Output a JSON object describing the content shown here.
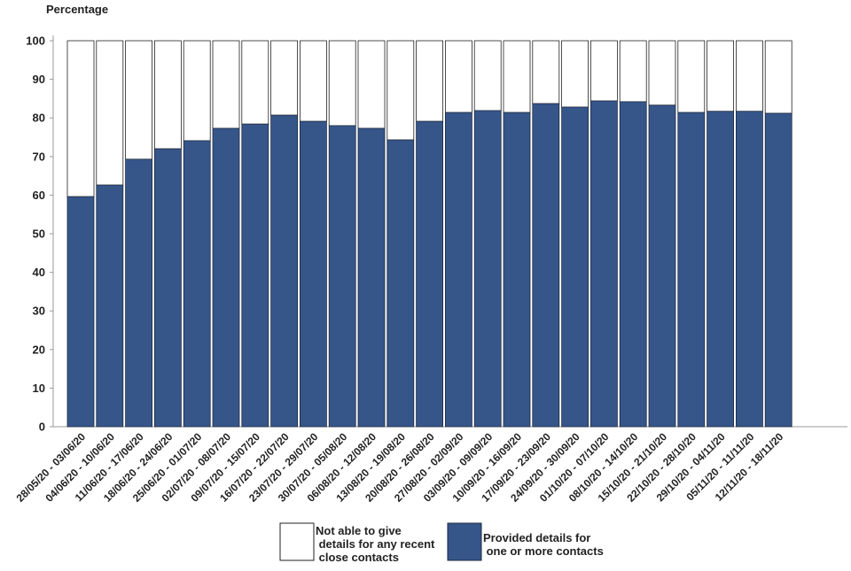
{
  "chart_data": {
    "type": "bar",
    "stacked": true,
    "title": "",
    "ylabel": "Percentage",
    "xlabel": "",
    "ylim": [
      0,
      100
    ],
    "yticks": [
      0,
      10,
      20,
      30,
      40,
      50,
      60,
      70,
      80,
      90,
      100
    ],
    "grid": false,
    "legend_placement": "bottom",
    "categories": [
      "28/05/20 - 03/06/20",
      "04/06/20 - 10/06/20",
      "11/06/20 - 17/06/20",
      "18/06/20 - 24/06/20",
      "25/06/20 - 01/07/20",
      "02/07/20 - 08/07/20",
      "09/07/20 - 15/07/20",
      "16/07/20 - 22/07/20",
      "23/07/20 - 29/07/20",
      "30/07/20 - 05/08/20",
      "06/08/20 - 12/08/20",
      "13/08/20 - 19/08/20",
      "20/08/20 - 26/08/20",
      "27/08/20 - 02/09/20",
      "03/09/20 - 09/09/20",
      "10/09/20 - 16/09/20",
      "17/09/20 - 23/09/20",
      "24/09/20 - 30/09/20",
      "01/10/20 - 07/10/20",
      "08/10/20 - 14/10/20",
      "15/10/20 - 21/10/20",
      "22/10/20 - 28/10/20",
      "29/10/20 - 04/11/20",
      "05/11/20 - 11/11/20",
      "12/11/20 - 18/11/20"
    ],
    "series": [
      {
        "name": "Provided details for\n one or more contacts",
        "color": "#36568a",
        "values": [
          59.6,
          62.6,
          69.3,
          72.0,
          74.1,
          77.3,
          78.4,
          80.7,
          79.1,
          78.0,
          77.3,
          74.3,
          79.1,
          81.4,
          81.9,
          81.4,
          83.7,
          82.8,
          84.4,
          84.2,
          83.3,
          81.4,
          81.7,
          81.7,
          81.2
        ]
      },
      {
        "name": "Not able to give\n details for any recent\n close contacts",
        "color": "#ffffff",
        "values": [
          40.4,
          37.4,
          30.7,
          28.0,
          25.9,
          22.7,
          21.6,
          19.3,
          20.9,
          22.0,
          22.7,
          25.7,
          20.9,
          18.6,
          18.1,
          18.6,
          16.3,
          17.2,
          15.6,
          15.8,
          16.7,
          18.6,
          18.3,
          18.3,
          18.8
        ]
      }
    ]
  }
}
